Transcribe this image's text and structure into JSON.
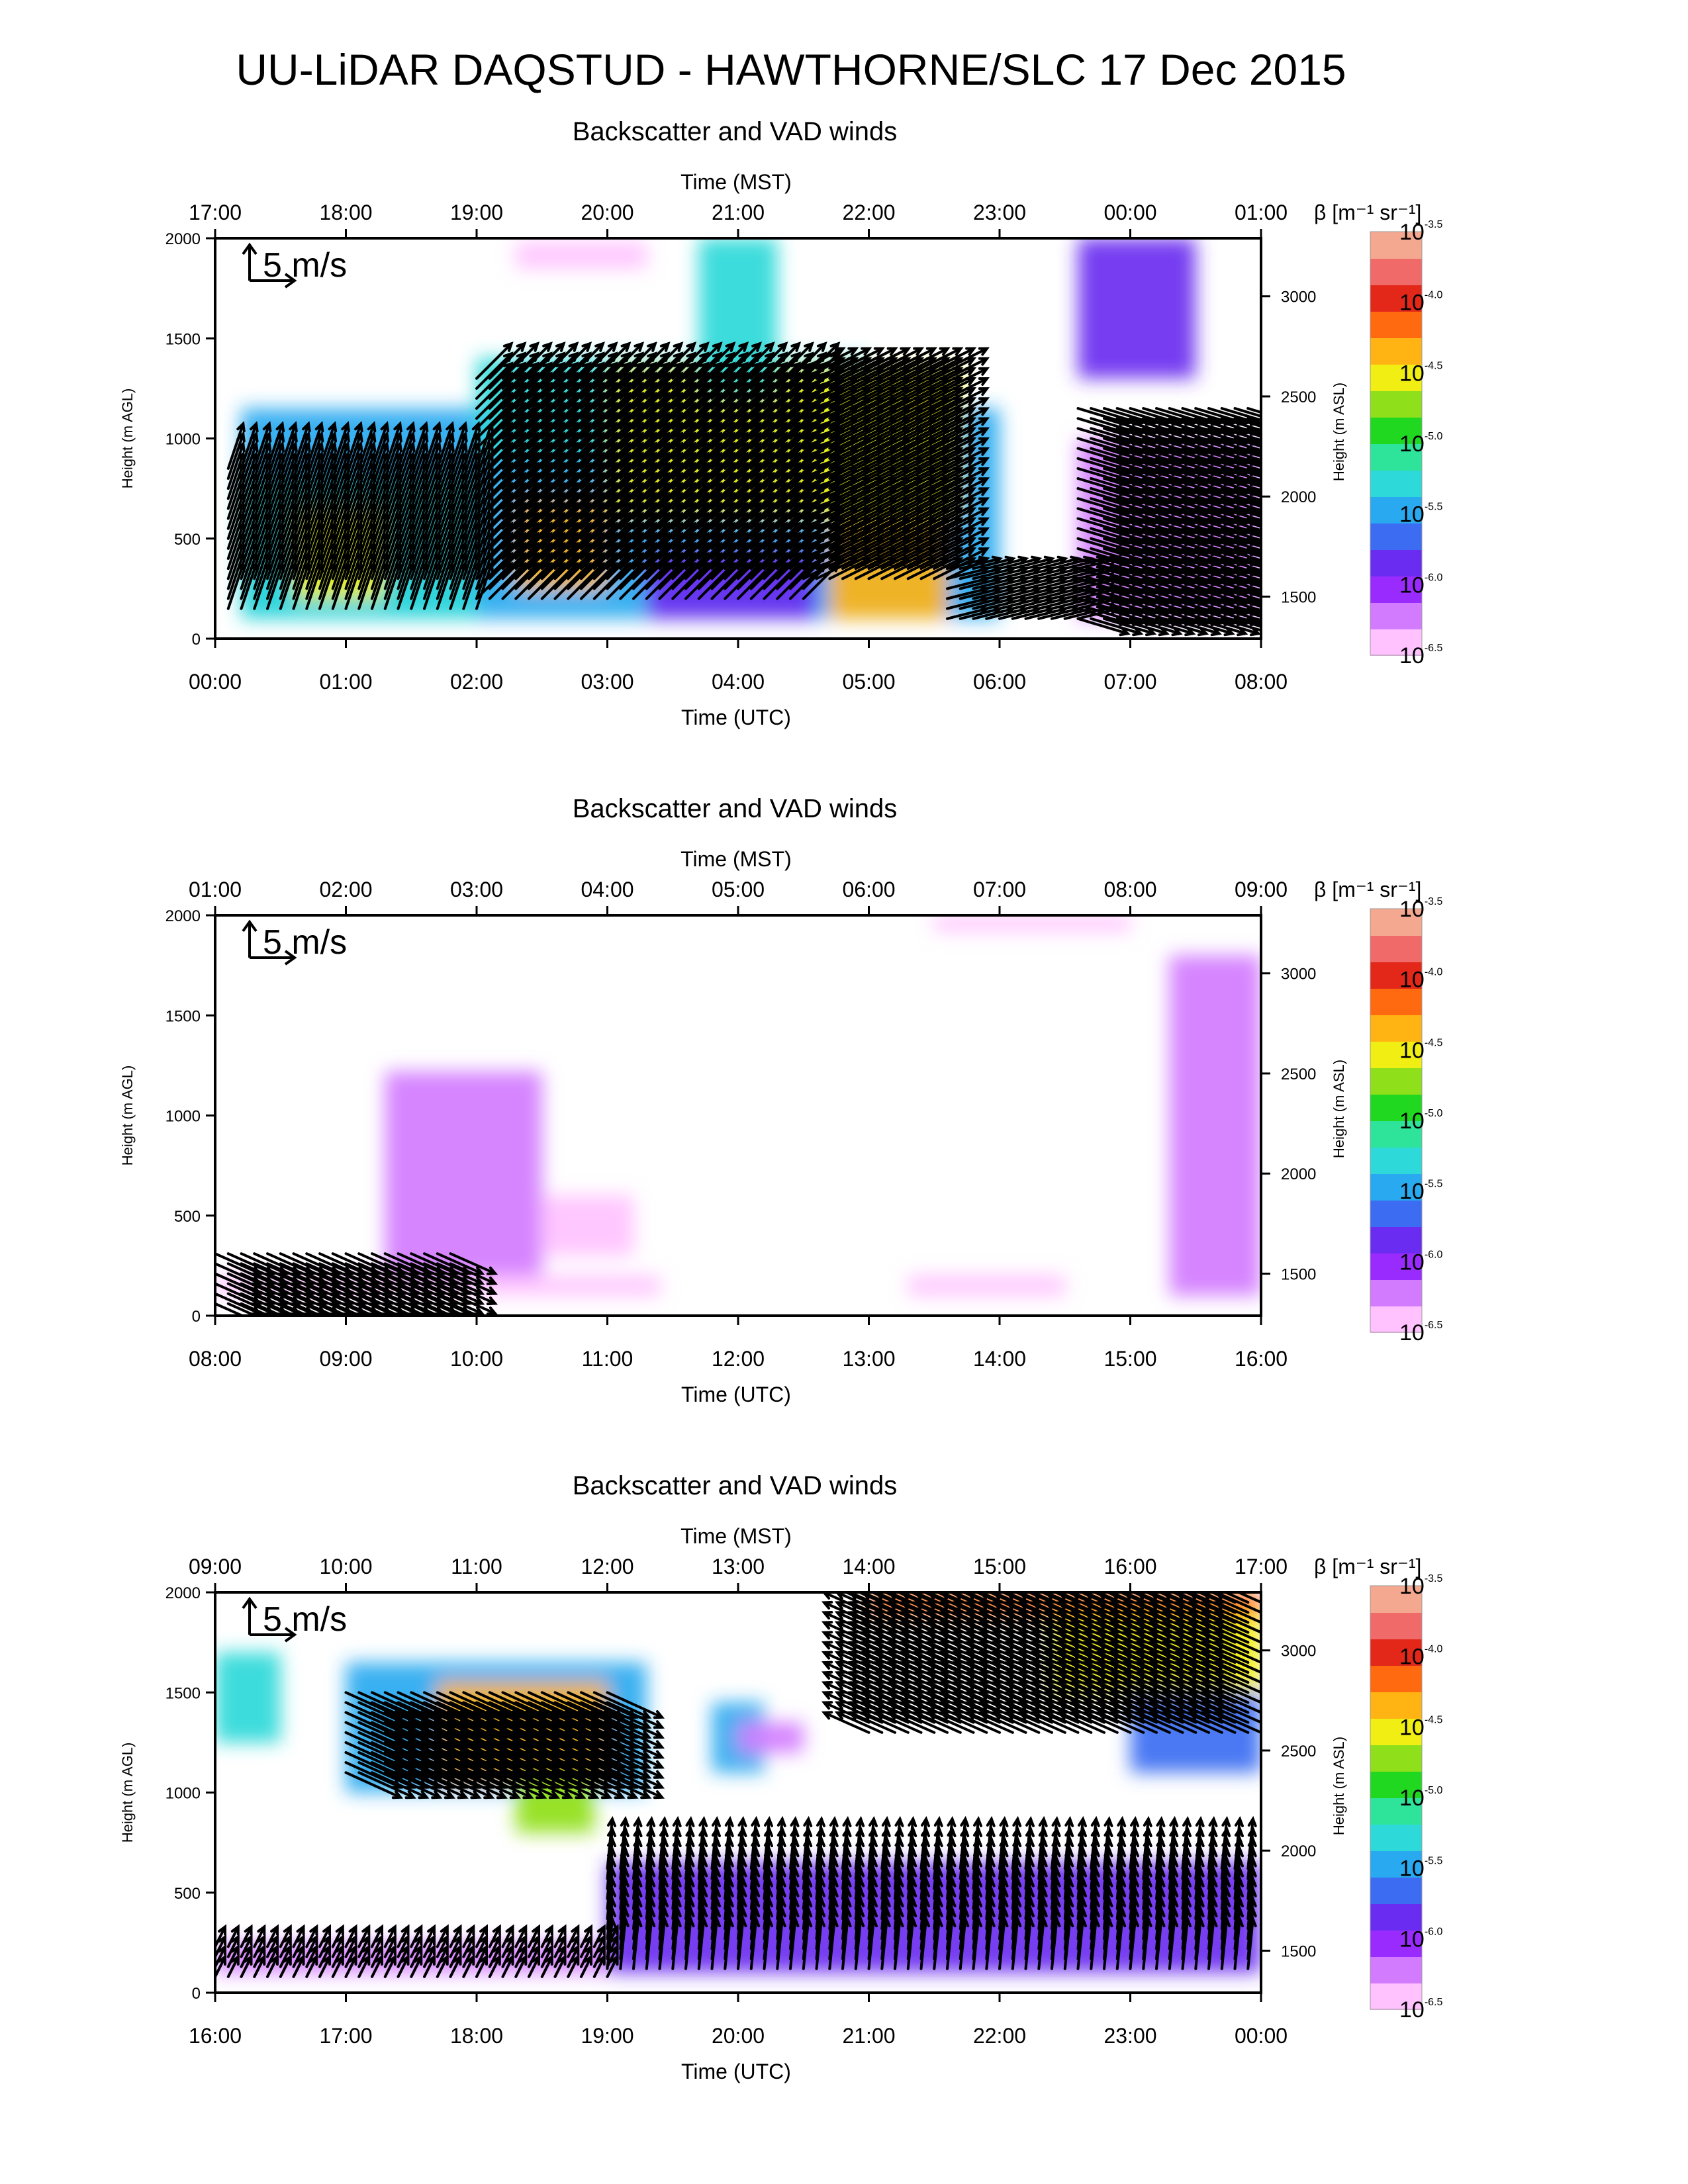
{
  "main_title": "UU-LiDAR DAQSTUD - HAWTHORNE/SLC 17 Dec 2015",
  "colors": {
    "colormap": [
      "#ffc2ff",
      "#d27bff",
      "#9a2bff",
      "#6a2cf0",
      "#3b6cf2",
      "#28a9f0",
      "#2ed9d9",
      "#2ee39a",
      "#1fd81f",
      "#8fe01a",
      "#f0ee12",
      "#ffb414",
      "#ff6a10",
      "#e3281a",
      "#f06a6a",
      "#f5a890"
    ],
    "vector": "#000000",
    "axis": "#000000"
  },
  "colorbar": {
    "label": "β [m⁻¹ sr⁻¹]",
    "ticks": [
      {
        "base": "10",
        "exp": "-3.5"
      },
      {
        "base": "10",
        "exp": "-4.0"
      },
      {
        "base": "10",
        "exp": "-4.5"
      },
      {
        "base": "10",
        "exp": "-5.0"
      },
      {
        "base": "10",
        "exp": "-5.5"
      },
      {
        "base": "10",
        "exp": "-6.0"
      },
      {
        "base": "10",
        "exp": "-6.5"
      }
    ]
  },
  "chart_data": [
    {
      "type": "heatmap",
      "title": "Backscatter and VAD winds",
      "top_axis_label": "Time (MST)",
      "top_ticks": [
        "17:00",
        "18:00",
        "19:00",
        "20:00",
        "21:00",
        "22:00",
        "23:00",
        "00:00",
        "01:00"
      ],
      "bottom_axis_label": "Time (UTC)",
      "bottom_ticks": [
        "00:00",
        "01:00",
        "02:00",
        "03:00",
        "04:00",
        "05:00",
        "06:00",
        "07:00",
        "08:00"
      ],
      "x_range_hours_utc": [
        0,
        8
      ],
      "left_axis_label": "Height (m AGL)",
      "left_ticks": [
        0,
        500,
        1000,
        1500,
        2000
      ],
      "right_axis_label": "Height (m ASL)",
      "right_ticks": [
        1500,
        2000,
        2500,
        3000
      ],
      "ylim_agl": [
        0,
        2000
      ],
      "vector_scale_label": "5 m/s",
      "colorbar_range_log10": [
        -6.5,
        -3.5
      ],
      "patches": [
        {
          "t": [
            0.2,
            6.0
          ],
          "h": [
            100,
            1150
          ],
          "log10_beta": -5.6
        },
        {
          "t": [
            0.2,
            2.0
          ],
          "h": [
            100,
            800
          ],
          "log10_beta": -5.2
        },
        {
          "t": [
            0.6,
            1.3
          ],
          "h": [
            200,
            650
          ],
          "log10_beta": -4.6
        },
        {
          "t": [
            2.0,
            5.0
          ],
          "h": [
            900,
            1400
          ],
          "log10_beta": -5.3
        },
        {
          "t": [
            2.3,
            3.0
          ],
          "h": [
            250,
            700
          ],
          "log10_beta": -4.3
        },
        {
          "t": [
            3.0,
            5.7
          ],
          "h": [
            600,
            1350
          ],
          "log10_beta": -4.5
        },
        {
          "t": [
            3.7,
            4.3
          ],
          "h": [
            1200,
            2000
          ],
          "log10_beta": -5.2
        },
        {
          "t": [
            4.7,
            5.6
          ],
          "h": [
            100,
            600
          ],
          "log10_beta": -4.3
        },
        {
          "t": [
            3.3,
            4.6
          ],
          "h": [
            100,
            450
          ],
          "log10_beta": -6.0
        },
        {
          "t": [
            6.6,
            7.5
          ],
          "h": [
            1300,
            2000
          ],
          "log10_beta": -6.0
        },
        {
          "t": [
            6.6,
            8.0
          ],
          "h": [
            100,
            1000
          ],
          "log10_beta": -6.2
        },
        {
          "t": [
            2.3,
            3.3
          ],
          "h": [
            1850,
            1980
          ],
          "log10_beta": -6.5
        }
      ],
      "wind_regions": [
        {
          "t": [
            0.1,
            2.0
          ],
          "h": [
            150,
            850
          ],
          "u": 1.5,
          "v": 4.5
        },
        {
          "t": [
            2.0,
            4.5
          ],
          "h": [
            200,
            1300
          ],
          "u": 3.5,
          "v": 3.5
        },
        {
          "t": [
            4.5,
            5.6
          ],
          "h": [
            300,
            1350
          ],
          "u": 4.0,
          "v": 2.0
        },
        {
          "t": [
            5.6,
            6.6
          ],
          "h": [
            100,
            350
          ],
          "u": 4.0,
          "v": 1.0
        },
        {
          "t": [
            6.6,
            8.0
          ],
          "h": [
            100,
            1150
          ],
          "u": 5.0,
          "v": -1.5
        }
      ]
    },
    {
      "type": "heatmap",
      "title": "Backscatter and VAD winds",
      "top_axis_label": "Time (MST)",
      "top_ticks": [
        "01:00",
        "02:00",
        "03:00",
        "04:00",
        "05:00",
        "06:00",
        "07:00",
        "08:00",
        "09:00"
      ],
      "bottom_axis_label": "Time (UTC)",
      "bottom_ticks": [
        "08:00",
        "09:00",
        "10:00",
        "11:00",
        "12:00",
        "13:00",
        "14:00",
        "15:00",
        "16:00"
      ],
      "x_range_hours_utc": [
        8,
        16
      ],
      "left_axis_label": "Height (m AGL)",
      "left_ticks": [
        0,
        500,
        1000,
        1500,
        2000
      ],
      "right_axis_label": "Height (m ASL)",
      "right_ticks": [
        1500,
        2000,
        2500,
        3000
      ],
      "ylim_agl": [
        0,
        2000
      ],
      "vector_scale_label": "5 m/s",
      "colorbar_range_log10": [
        -6.5,
        -3.5
      ],
      "patches": [
        {
          "t": [
            8.0,
            11.4
          ],
          "h": [
            100,
            200
          ],
          "log10_beta": -6.4
        },
        {
          "t": [
            9.3,
            10.5
          ],
          "h": [
            200,
            1220
          ],
          "log10_beta": -6.3
        },
        {
          "t": [
            10.5,
            11.2
          ],
          "h": [
            300,
            600
          ],
          "log10_beta": -6.4
        },
        {
          "t": [
            13.5,
            15.0
          ],
          "h": [
            1920,
            2000
          ],
          "log10_beta": -6.4
        },
        {
          "t": [
            15.3,
            16.0
          ],
          "h": [
            100,
            1800
          ],
          "log10_beta": -6.3
        },
        {
          "t": [
            13.3,
            14.5
          ],
          "h": [
            100,
            200
          ],
          "log10_beta": -6.4
        }
      ],
      "wind_regions": [
        {
          "t": [
            8.0,
            9.8
          ],
          "h": [
            60,
            330
          ],
          "u": 4.5,
          "v": -2.0
        }
      ]
    },
    {
      "type": "heatmap",
      "title": "Backscatter and VAD winds",
      "top_axis_label": "Time (MST)",
      "top_ticks": [
        "09:00",
        "10:00",
        "11:00",
        "12:00",
        "13:00",
        "14:00",
        "15:00",
        "16:00",
        "17:00"
      ],
      "bottom_axis_label": "Time (UTC)",
      "bottom_ticks": [
        "16:00",
        "17:00",
        "18:00",
        "19:00",
        "20:00",
        "21:00",
        "22:00",
        "23:00",
        "00:00"
      ],
      "x_range_hours_utc": [
        16,
        24
      ],
      "left_axis_label": "Height (m AGL)",
      "left_ticks": [
        0,
        500,
        1000,
        1500,
        2000
      ],
      "right_axis_label": "Height (m ASL)",
      "right_ticks": [
        1500,
        2000,
        2500,
        3000
      ],
      "ylim_agl": [
        0,
        2000
      ],
      "vector_scale_label": "5 m/s",
      "colorbar_range_log10": [
        -6.5,
        -3.5
      ],
      "patches": [
        {
          "t": [
            16.0,
            16.5
          ],
          "h": [
            1250,
            1700
          ],
          "log10_beta": -5.3
        },
        {
          "t": [
            17.0,
            19.3
          ],
          "h": [
            1000,
            1650
          ],
          "log10_beta": -5.4
        },
        {
          "t": [
            17.7,
            19.0
          ],
          "h": [
            1050,
            1550
          ],
          "log10_beta": -4.3
        },
        {
          "t": [
            18.3,
            18.9
          ],
          "h": [
            800,
            1100
          ],
          "log10_beta": -4.8
        },
        {
          "t": [
            19.8,
            20.2
          ],
          "h": [
            1100,
            1450
          ],
          "log10_beta": -5.6
        },
        {
          "t": [
            20.0,
            20.5
          ],
          "h": [
            1200,
            1350
          ],
          "log10_beta": -6.2
        },
        {
          "t": [
            21.0,
            24.0
          ],
          "h": [
            1880,
            2000
          ],
          "log10_beta": -4.2
        },
        {
          "t": [
            22.4,
            24.0
          ],
          "h": [
            1500,
            1880
          ],
          "log10_beta": -4.5
        },
        {
          "t": [
            23.0,
            24.0
          ],
          "h": [
            1100,
            1500
          ],
          "log10_beta": -5.8
        },
        {
          "t": [
            19.0,
            24.0
          ],
          "h": [
            100,
            650
          ],
          "log10_beta": -6.0
        },
        {
          "t": [
            16.0,
            19.0
          ],
          "h": [
            100,
            250
          ],
          "log10_beta": -6.3
        }
      ],
      "wind_regions": [
        {
          "t": [
            17.0,
            19.0
          ],
          "h": [
            1100,
            1500
          ],
          "u": 5.5,
          "v": -2.5
        },
        {
          "t": [
            21.0,
            24.0
          ],
          "h": [
            1300,
            2000
          ],
          "u": -4.5,
          "v": 2.0
        },
        {
          "t": [
            16.0,
            19.0
          ],
          "h": [
            80,
            230
          ],
          "u": 1.0,
          "v": 2.0
        },
        {
          "t": [
            19.0,
            24.0
          ],
          "h": [
            120,
            640
          ],
          "u": 0.5,
          "v": 5.0
        }
      ]
    }
  ]
}
